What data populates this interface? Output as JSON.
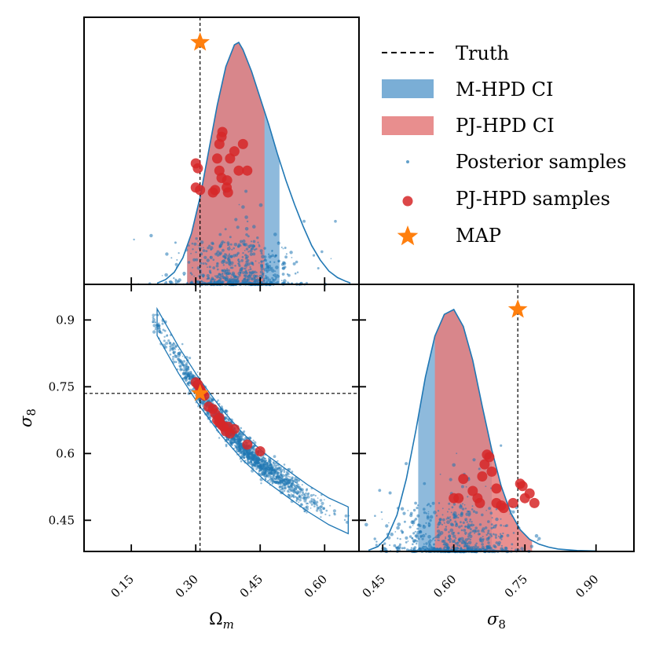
{
  "chart_data": {
    "type": "corner-plot",
    "title": "",
    "legend": {
      "placement": "top-right",
      "entries": [
        {
          "key": "truth",
          "label": "Truth",
          "kind": "dashed-line",
          "color": "#000000"
        },
        {
          "key": "mhpd",
          "label": "M-HPD CI",
          "kind": "patch",
          "color": "#7aaed6"
        },
        {
          "key": "pjhpd",
          "label": "PJ-HPD CI",
          "kind": "patch",
          "color": "#e57d7d"
        },
        {
          "key": "posterior",
          "label": "Posterior samples",
          "kind": "dot",
          "color": "#1f77b4"
        },
        {
          "key": "pjsamples",
          "label": "PJ-HPD samples",
          "kind": "circle",
          "color": "#d62728"
        },
        {
          "key": "map",
          "label": "MAP",
          "kind": "star",
          "color": "#ff7f0e"
        }
      ]
    },
    "colors": {
      "kde": "#1f77b4",
      "scatter": "#1f77b4",
      "mhpd": "#7aaed6",
      "pjhpd": "#e57d7d",
      "pjpoints": "#d62728",
      "map": "#ff7f0e",
      "truth": "#000000"
    },
    "parameters": {
      "omega_m": {
        "label": "Ωm",
        "label_main": "Ω",
        "label_sub": "m",
        "range": [
          0.04,
          0.68
        ],
        "ticks": [
          0.15,
          0.3,
          0.45,
          0.6
        ],
        "tick_labels": [
          "0.15",
          "0.30",
          "0.45",
          "0.60"
        ],
        "truth": 0.31,
        "map": 0.31
      },
      "sigma_8": {
        "label": "σ8",
        "label_main": "σ",
        "label_sub": "8",
        "range": [
          0.38,
          0.98
        ],
        "ticks": [
          0.45,
          0.6,
          0.75,
          0.9
        ],
        "tick_labels": [
          "0.45",
          "0.6",
          "0.75",
          "0.9"
        ],
        "x_tick_labels": [
          "0.45",
          "0.60",
          "0.75",
          "0.90"
        ],
        "truth": 0.735,
        "map": 0.735
      }
    },
    "panels": [
      {
        "id": "marginal-omega_m",
        "type": "density",
        "parameter": "omega_m",
        "kde": [
          [
            0.21,
            0.005
          ],
          [
            0.23,
            0.02
          ],
          [
            0.25,
            0.05
          ],
          [
            0.27,
            0.11
          ],
          [
            0.29,
            0.21
          ],
          [
            0.31,
            0.36
          ],
          [
            0.33,
            0.55
          ],
          [
            0.35,
            0.74
          ],
          [
            0.37,
            0.9
          ],
          [
            0.39,
            0.99
          ],
          [
            0.4,
            1.0
          ],
          [
            0.41,
            0.97
          ],
          [
            0.43,
            0.88
          ],
          [
            0.45,
            0.77
          ],
          [
            0.47,
            0.66
          ],
          [
            0.49,
            0.54
          ],
          [
            0.51,
            0.43
          ],
          [
            0.53,
            0.33
          ],
          [
            0.55,
            0.24
          ],
          [
            0.57,
            0.16
          ],
          [
            0.59,
            0.1
          ],
          [
            0.61,
            0.055
          ],
          [
            0.63,
            0.028
          ],
          [
            0.65,
            0.012
          ],
          [
            0.66,
            0.006
          ]
        ],
        "mhpd_interval": [
          0.28,
          0.495
        ],
        "pjhpd_interval": [
          0.28,
          0.46
        ],
        "pj_points": [
          [
            0.3,
            0.5
          ],
          [
            0.305,
            0.48
          ],
          [
            0.3,
            0.4
          ],
          [
            0.31,
            0.39
          ],
          [
            0.355,
            0.58
          ],
          [
            0.36,
            0.61
          ],
          [
            0.362,
            0.63
          ],
          [
            0.35,
            0.52
          ],
          [
            0.38,
            0.52
          ],
          [
            0.39,
            0.55
          ],
          [
            0.36,
            0.44
          ],
          [
            0.373,
            0.43
          ],
          [
            0.372,
            0.4
          ],
          [
            0.375,
            0.38
          ],
          [
            0.345,
            0.39
          ],
          [
            0.34,
            0.38
          ],
          [
            0.355,
            0.47
          ],
          [
            0.4,
            0.47
          ],
          [
            0.42,
            0.47
          ],
          [
            0.41,
            0.58
          ]
        ]
      },
      {
        "id": "joint-omega_m-sigma_8",
        "type": "scatter",
        "x_parameter": "omega_m",
        "y_parameter": "sigma_8",
        "posterior_ridge": [
          [
            0.21,
            0.895
          ],
          [
            0.26,
            0.81
          ],
          [
            0.31,
            0.735
          ],
          [
            0.36,
            0.67
          ],
          [
            0.41,
            0.615
          ],
          [
            0.46,
            0.57
          ],
          [
            0.51,
            0.535
          ],
          [
            0.56,
            0.5
          ],
          [
            0.61,
            0.47
          ],
          [
            0.655,
            0.45
          ]
        ],
        "pj_points": [
          [
            0.3,
            0.76
          ],
          [
            0.305,
            0.755
          ],
          [
            0.31,
            0.745
          ],
          [
            0.312,
            0.74
          ],
          [
            0.315,
            0.735
          ],
          [
            0.32,
            0.73
          ],
          [
            0.33,
            0.705
          ],
          [
            0.34,
            0.7
          ],
          [
            0.345,
            0.69
          ],
          [
            0.35,
            0.675
          ],
          [
            0.355,
            0.67
          ],
          [
            0.36,
            0.665
          ],
          [
            0.365,
            0.66
          ],
          [
            0.37,
            0.65
          ],
          [
            0.375,
            0.66
          ],
          [
            0.38,
            0.645
          ],
          [
            0.39,
            0.655
          ],
          [
            0.42,
            0.62
          ],
          [
            0.45,
            0.605
          ],
          [
            0.355,
            0.68
          ]
        ]
      },
      {
        "id": "marginal-sigma_8",
        "type": "density",
        "parameter": "sigma_8",
        "range": [
          0.4,
          0.98
        ],
        "kde": [
          [
            0.42,
            0.005
          ],
          [
            0.44,
            0.02
          ],
          [
            0.46,
            0.06
          ],
          [
            0.48,
            0.15
          ],
          [
            0.5,
            0.3
          ],
          [
            0.52,
            0.5
          ],
          [
            0.54,
            0.72
          ],
          [
            0.56,
            0.89
          ],
          [
            0.58,
            0.98
          ],
          [
            0.6,
            1.0
          ],
          [
            0.62,
            0.93
          ],
          [
            0.64,
            0.79
          ],
          [
            0.66,
            0.6
          ],
          [
            0.68,
            0.42
          ],
          [
            0.7,
            0.27
          ],
          [
            0.72,
            0.16
          ],
          [
            0.74,
            0.09
          ],
          [
            0.76,
            0.05
          ],
          [
            0.78,
            0.03
          ],
          [
            0.8,
            0.018
          ],
          [
            0.82,
            0.01
          ],
          [
            0.86,
            0.004
          ],
          [
            0.9,
            0.002
          ]
        ],
        "mhpd_interval": [
          0.525,
          0.68
        ],
        "pjhpd_interval": [
          0.56,
          0.765
        ],
        "pj_points": [
          [
            0.6,
            0.22
          ],
          [
            0.61,
            0.22
          ],
          [
            0.62,
            0.3
          ],
          [
            0.64,
            0.25
          ],
          [
            0.65,
            0.22
          ],
          [
            0.655,
            0.2
          ],
          [
            0.66,
            0.31
          ],
          [
            0.665,
            0.36
          ],
          [
            0.67,
            0.4
          ],
          [
            0.675,
            0.39
          ],
          [
            0.68,
            0.33
          ],
          [
            0.69,
            0.26
          ],
          [
            0.7,
            0.19
          ],
          [
            0.705,
            0.18
          ],
          [
            0.725,
            0.2
          ],
          [
            0.74,
            0.28
          ],
          [
            0.745,
            0.27
          ],
          [
            0.75,
            0.22
          ],
          [
            0.76,
            0.24
          ],
          [
            0.77,
            0.2
          ],
          [
            0.69,
            0.2
          ]
        ]
      }
    ]
  }
}
